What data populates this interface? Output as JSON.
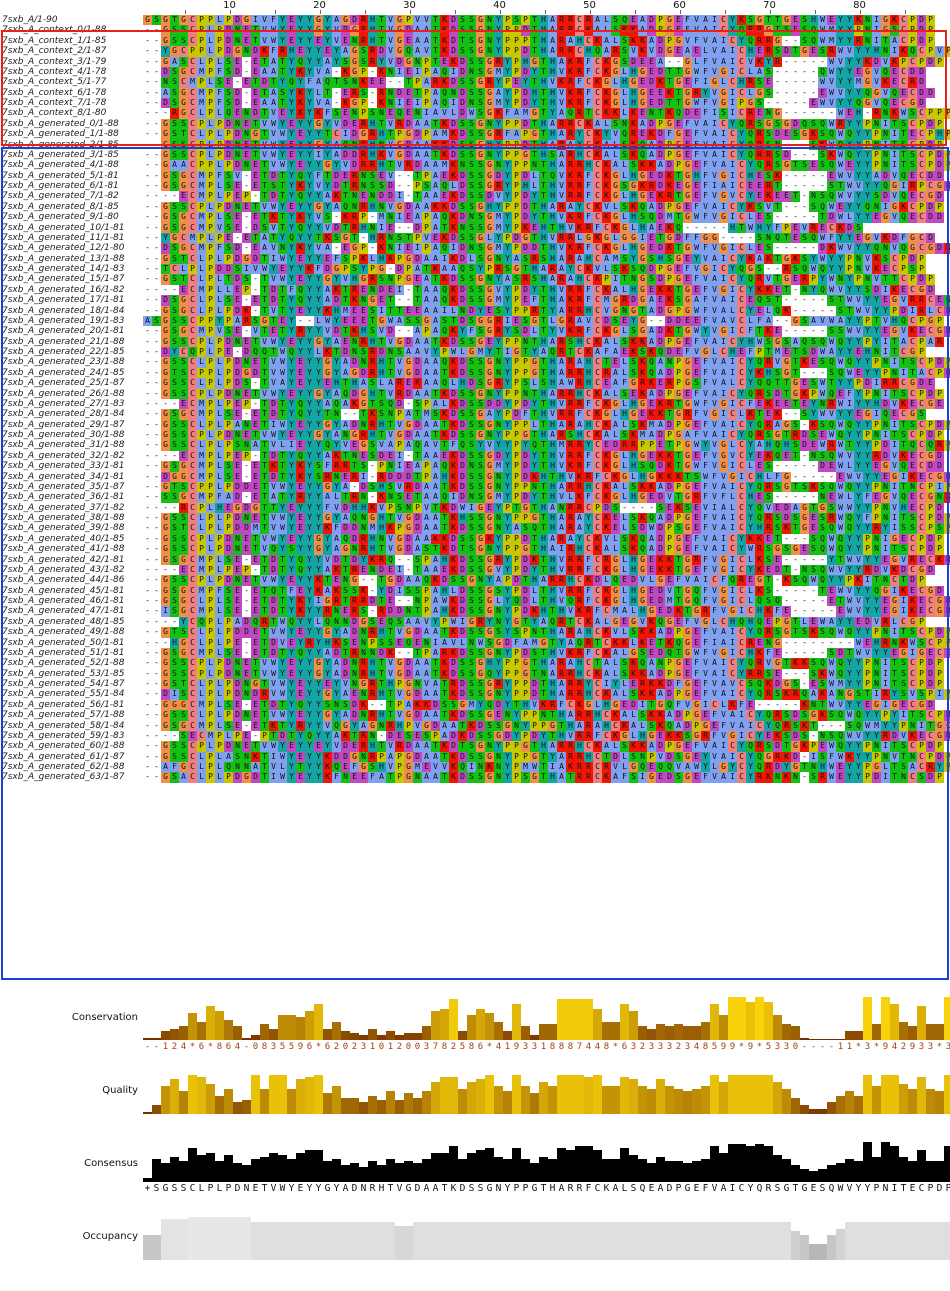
{
  "ruler": {
    "ticks": [
      "10",
      "20",
      "30",
      "40",
      "50",
      "60",
      "70",
      "80"
    ]
  },
  "sequences": [
    {
      "name": "7sxb_A/1-90",
      "seq": "GSGTGCPPLPDGIVFYEYYGYAGDRHTVGPVVTKDSSGNYPSPTHARRCRALSQEADPGEFVAICYKSGTTGESHWEYYKNIGKCPDP"
    },
    {
      "name": "7sxb_A_context_0/1-88",
      "seq": "--GSSCPLPDNETVWYEYYGYVDGRHTVGDAATKDSSGNYPPDTHARRCKALSKKADPGEFVAICYQRRGTSESQWMYYPNIGSCPDP"
    },
    {
      "name": "7sxb_A_context_1/1-85",
      "seq": "--GSSCPLPDNETVWYEYYEYVENRHTVGEAATKDTSGNYPPPTHARAHCKALSKKADPGVFVAICYQRRG--SQWMYYRNITACPDP"
    },
    {
      "name": "7sxb_A_context_2/1-87",
      "seq": "--YGCPPLPDGNDKFRHEYYEYAGSRDVGQAVTKDSSGNYPPDTHARRCHQARSVKVDGEAELVAICHERSDTGESRWVYYHNIKQCPVP"
    },
    {
      "name": "7sxb_A_context_3/1-79",
      "seq": "--GASCLPLSE-ETATYQYYAYSGSRYVDGNPTEKDSSGRYPHGTHAKRFCKGSDEEA--GLFVAICVKYR-----WVYYKDVKPCPDP"
    },
    {
      "name": "7sxb_A_context_4/1-78",
      "seq": "--DSGCMPFSD-EAATYKYVA-KGP-KNIEIPAQIDNSGMYPDYTHVKRFCKGLHGEDTTGWFVGICLAS-----QWYYEGVQECDD"
    },
    {
      "name": "7sxb_A_context_5/1-77",
      "seq": "--NSCMPLSE-ETDTYQYFAQTSNKEE--TPARKDSSGRYPEYTHVKRFCKGLHGEDKTGEFIGLCHRSE-----WVYYMGVKECRD"
    },
    {
      "name": "7sxb_A_context_6/1-78",
      "seq": "--ASGCMPFSD-ETASYKYLT-ERS-RNDETPAQNDSSGAYPDHTHVKRFCKGLHGEEKTGRYVGICLGS-----EWVYYQGVQECDD"
    },
    {
      "name": "7sxb_A_context_7/1-78",
      "seq": "--DSGCMPFSD-EAATYKYVA-KGP-KNIEIPAQIDNSGMYPDYTHVKRFCKGLHGEDTTGWFVGIPGS-----EWVYYQGVQECGD"
    },
    {
      "name": "7sxb_A_context_8/1-80",
      "seq": "---RGCLPLQENDTVEYKYKFSENPSNEQENIAVLDWSGKFAMGTYAQRTCKKLKENTKQDEFISICRENG------WEH-RNKWSCPPP"
    },
    {
      "name": "7sxb_A_generated_0/1-88",
      "seq": "--GSSCPLPDNETVWYEYYGYVDERHTVRDAATKDSSGNYPPDTHARRCKALSNKADPGEFVAICYQRSGSGDQSQWRYYPNITSCPDP"
    },
    {
      "name": "7sxb_A_generated_1/1-88",
      "seq": "--GSTCLPLPDNGTVWYEYYTCIDGRHTPGDPAMKDSSGRFAPGTHARYCKYVQREKDFGEFVAICYQRSDESGKSQWQYYPNITECPHP"
    },
    {
      "name": "7sxb_A_generated_2/1-85",
      "seq": "--GSSCPLPDNETVWYEYYGYAQNRHNVGDAAKKDSSGHYPPDTHARAYCKALSKQADPGEFVAICYQRSN---SKWQYYPNITSCPDP"
    },
    {
      "name": "7sxb_A_generated_3/1-85",
      "seq": "--GSSCPLPDNETVWYEYYIYADDRHKVGDAATKDSSGNYPPGTHSARHCKALSKQADPGEFVAICYQRRSD---SKWQYYPNITSCPDP"
    },
    {
      "name": "7sxb_A_generated_4/1-88",
      "seq": "--GAACPPLPDNETVWYEYYGYVDRRHTVRDAAMKNSSGNYPPNTHARRHCKALSKKADPGEFVAICYQRSGTSESQWEYYPNITSCPDP"
    },
    {
      "name": "7sxb_A_generated_5/1-81",
      "seq": "--GSGCMPFSV-ETDTYQYFTDERNSEV--TPAEKDSSGDYPDLTQVKRFCKGLHGEDKTGHFVGICHESK-----EWVYYADVQECDD"
    },
    {
      "name": "7sxb_A_generated_6/1-81",
      "seq": "--GSGCMPLSE-ETSTYKYVYDTRNSSD--PSAQLDSSGRYPHLTHVRRFCKGSGKRDKEGEFIAICEERT-----STWVYYQGIRPCGDS"
    },
    {
      "name": "7sxb_A_generated_7/1-82",
      "seq": "----ECMPLPEP-TDTYQYYAKTNENDDI-TAAEKDSSDVYPDYTHVRRFCKGLHGEKRTGEFVGVCYEKEET-NSQWVYYSDVQECGD"
    },
    {
      "name": "7sxb_A_generated_8/1-85",
      "seq": "--GSSCPLPDNETVWYEYYGYAQNRHNVGDAAKKDSSGHYPPDTHARAYCKVLSKQADPGEFVAICYKSVT---SQWEYYQNIGKCPDP"
    },
    {
      "name": "7sxb_A_generated_9/1-80",
      "seq": "--GSGCMPLSE-ETKTYKYVS-KRP-MNIEAPAQKDNSGMYPDYTHVKRFCKGLHSQDMTGWFVGICLES-----TDWLYYEGVQECDD"
    },
    {
      "name": "7sxb_A_generated_10/1-81",
      "seq": "--GSGCMPVSE-DSVTYQYYVDTRHNIE--DPATKNSSGMYPKEHTHVKRFCKGLHAEKQ-----HTWHYFPEVRECKDS"
    },
    {
      "name": "7sxb_A_generated_11/1-81",
      "seq": "--YGCMPLPE-ETATYQYYTKSGT-HRNSTPVEKDSSGLYPDGTHVRRLGKGLGGIETGDFFGG----SNQTESQWFYYEGVKDFGCD"
    },
    {
      "name": "7sxb_A_generated_12/1-80",
      "seq": "--DSGCMPFSD-EAVNYKYVA-EGP-KNIEIPAQIDNSGMYPDDTHVKRFCKGLHGEDKTGWFVGICLES-----DKWVYYQNVQGCGDK"
    },
    {
      "name": "7sxb_A_generated_13/1-88",
      "seq": "--GSTCLPLPDGDTIWYEYYEFSPKLHKPGDAAIKDLSGNYASRSHARAHCAMSYGSHSGEYVAICYKAKTGKSYWYYPNVKSCPDP"
    },
    {
      "name": "7sxb_A_generated_14/1-83",
      "seq": "--TCLPLPDDSIVWYEYYKFDGPSYPG-DPATKAAQSYPRSGTHARAYCKVLSKSQDPGEFVGICYQGS--RSQWQYYPNVKECPSP"
    },
    {
      "name": "7sxb_A_generated_15/1-87",
      "seq": "--GSTCLPLTDS-TVWYEYYGYVHGRSNPGEATKDSSGNYASRSHARAHCKPITNGSDPGEFVAICYQRVTGERPYWNYPNVTTCPDP"
    },
    {
      "name": "7sxb_A_generated_16/1-82",
      "seq": "----ECMPLLEP-TDTFQYYAKTRENDEI-TAAQKDSSGVYPDYTHVRRFCKALHGEKKTGEFVGICYKKET-NYQWVYYSDIKECGD"
    },
    {
      "name": "7sxb_A_generated_17/1-81",
      "seq": "--DSGCLPLSE-ETDTYQYYADTKNGET--TAAQKDSSGMYPEFTHAKRFCMGRDGAEKSGAFVAICEQST-----STWVYYEGVRRCEN"
    },
    {
      "name": "7sxb_A_generated_18/1-84",
      "seq": "--GSGCLPLPDK-TVTYEYYKHMEESITTEEAAILNDYESYPPRTYARRHCVGNGTADGPGWFVALCYELQK-----STWVYYPDIRLCDDE"
    },
    {
      "name": "7sxb_A_generated_19/1-83",
      "seq": "ASGSSCPPYPARSGTEY--LWYEEETGWASSGASTDSGGRIESGTLGRAVCDSEYG--DDEEFVAVCLFA--GSAVWAYYPTVHQCPGP"
    },
    {
      "name": "7sxb_A_generated_20/1-81",
      "seq": "--GSGCMPVSE-VTETYRYYVDTKHSVD--APAQKYFSGRYSDLTYVKRFCKGLSGADKTGWYVGICFTKE-----SSWVYYEGVKECGDE"
    },
    {
      "name": "7sxb_A_generated_21/1-88",
      "seq": "--GSSCPLPDNETVWYEYYGYAENRHTVGDAATKDSSGEYPPNTHARSHCKALSKKADPGEFVAICYHWSGSAQSQWQYYPYITACPAR"
    },
    {
      "name": "7sxb_A_generated_22/1-85",
      "seq": "--DYCQPLPE-DQQTWQYYLKTDNSRDNSAAVYPWLGMYTIGTYAQRTCKAFAEKSKQDEFVGLCHEFPTMETSDWAYYEHNITCGP"
    },
    {
      "name": "7sxb_A_generated_23/1-88",
      "seq": "--GSSCLPLPDNETVWYEYYGYADNRHTVGDAAQKDSSGNYPPGTHARAHCTELSKQANPGEFVAICYQRVGTKESQWQYYPNITSCPDP"
    },
    {
      "name": "7sxb_A_generated_24/1-85",
      "seq": "--GTSCPPLPDGDTVWYEYYGYAGDRHTVGDAATKDSSGNYPPGTHARRHCRALSKQADPGEFVAICYKHSGT---SQWEYYPNITACPDP"
    },
    {
      "name": "7sxb_A_generated_25/1-87",
      "seq": "--GSSCLPLPDS-TVAYEYYEHTHASLAREKAAQLHDSGRYPSLSHAWRHCEAFGRKERPGSFVALCYQQTTGESWTYYPDIRRCGDE"
    },
    {
      "name": "7sxb_A_generated_26/1-88",
      "seq": "--GSSCPLPDNETVWYEYYGYAQDGHTVRDAATKDSSGNYPPNTHARRHCKALSEKADPGEFVAICYQRSDTGKPWQEFYPNITSCPDP"
    },
    {
      "name": "7sxb_A_generated_27/1-83",
      "seq": "----ECMPLPEP-TDTYQYYAQAKGTSQD-SPALKDSSDDYPDYTHVRRFCKGLHGEKRTGWFVGICFEKEETEYNRWIYYHDVKECGE"
    },
    {
      "name": "7sxb_A_generated_28/1-84",
      "seq": "--GSGCMPLSE-ETDTYQYYTN--TKSNPATMSKDSSGAYPDFTHVRRFCKGLHGEKKTGRFVGICLKTEK--SYWVYYEGIQECGS"
    },
    {
      "name": "7sxb_A_generated_29/1-87",
      "seq": "--GSSCLPLPANETIWYEYYGYADNRHTVGDAATKDSSGNYPPLTHARAHCKALSKMADPGEFVAICYQRAGS-KSQWQYYPNITSCPDP"
    },
    {
      "name": "7sxb_A_generated_30/1-88",
      "seq": "--GSSCPLPDNETVWYEYYGYANGRHTVGDAATKDSSGNYPPGTHARSHCKALSKMADPGAFVAICYQRSGTRDSEWQYYPNITSCPDP"
    },
    {
      "name": "7sxb_A_generated_31/1-88",
      "seq": "--GSSCLPLPSNATVLIEYYQYVEGSVAPAQAVTFQSYVYYPYQTHMRRYCEDRRPPETPGWYVGLCYAHQHSDEWRWTYYPDITQCQRP"
    },
    {
      "name": "7sxb_A_generated_32/1-82",
      "seq": "----ECMPLPEP-TDTYQYYAKTNESDEI-TAAEKDSSGDYPDYTHVRRFCKGLHGEKKTGEFVGVCYEKQET-NSQWVYYRDVKECGD"
    },
    {
      "name": "7sxb_A_generated_33/1-81",
      "seq": "--GSGCMPLSE-ETKTYKYSFRRTS-PNIEAPAQKDNSGMYPDYTHVKRFCKGLHSQDKTGWFVGICLES-----DEWLYYEGVQECDD"
    },
    {
      "name": "7sxb_A_generated_34/1-81",
      "seq": "--DGGCMPLSE-ETDTYKYSRNERI-RDDDTPAHKDSSGNYPDKHTHVKRFCKGLHGKKKTSWFVGICHLFG-----EWVYYEGIKECGDM"
    },
    {
      "name": "7sxb_A_generated_35/1-87",
      "seq": "--GTSCPPLPDDETVWYEYYGYA-DSHSVRDAATKDSSGNYPPNTHARRHCKALSKKADPGEFVAICYQRSGTSKSQWQYYPNITNCPIP"
    },
    {
      "name": "7sxb_A_generated_36/1-81",
      "seq": "--SSGCMPFAD-ETATYRYYALTRN-KNSETAAQIDNSGMYPDYTHVLKFCKGLHGEDVTGRFVFLCHES-----NEWLYFEGVQECGNK"
    },
    {
      "name": "7sxb_A_generated_37/1-82",
      "seq": "----RCPLHEGDGTTYEYYYFVDHHKVPSNPVTKDWIGEYPTGTHANRRCPDS----SEKSEVIALCYQVEDAGTGSWWYYPNVHECPD"
    },
    {
      "name": "7sxb_A_generated_38/1-88",
      "seq": "--GSSCLPLPDNETVWYEYYGYAQNGHTVGDAATKHSSGNYPPGTHARAYCKELSKQADPGEFVAICYQRSDSGESRWQYFPNITSCPDP"
    },
    {
      "name": "7sxb_A_generated_39/1-88",
      "seq": "--GSTCLPLPDDMTVWYEYYKFDDNMHKPGDAATKDSSGNYASQTHARAYCKELSDWDPSGEFVAICYHRSKTGESQWQYYRYISSCPSP"
    },
    {
      "name": "7sxb_A_generated_40/1-85",
      "seq": "--GSSCPLPDNETVWYEYYGYAQDRHNVGDAAKKDSSGKYPPDTHARAYCKVLSKQADPGEFVAICYKKET---SQWQYYPNIGECPDP"
    },
    {
      "name": "7sxb_A_generated_41/1-88",
      "seq": "--GSSCPLPDNETVQYSYYGYAGNRHTVGDASTKDTSGNYPPGTHAIRHCKALSKQADPGEFVAICYWRSGSGESQWQYYPNITSCPDP"
    },
    {
      "name": "7sxb_A_generated_42/1-81",
      "seq": "--GSGCMPLSE-ETDTYQYYVDTDYKRQ--SPAHKDSSGRYPDKTHVRRFCRGLHGEKKTGRFVGICLKSE-----YTWVYYEGVRECKD"
    },
    {
      "name": "7sxb_A_generated_43/1-82",
      "seq": "----ECMPLPEP-TDTYQYYAKTRENDEI-TAAEKDSSGVYPDYTHVRRFCKGLHGEKKTGEFVGICYKEDT-NSQWVYYRDVKDCGD"
    },
    {
      "name": "7sxb_A_generated_44/1-86",
      "seq": "--GSSCPLPDNETVWYEYYKTENG--TGDAAQKDSSGNYAPDTHARRHCKDLQEDVLGEFVAICFQREGT-KSQWQYYPKITNCTDP"
    },
    {
      "name": "7sxb_A_generated_45/1-81",
      "seq": "--GSGCMPFSE-ETQTFEYKAKSSK-YDISSPAHLDSSGSYPDLTHVRRFCKGLHGEDVTGQFVGICLKS-----TEWVYYQGIKECGD"
    },
    {
      "name": "7sxb_A_generated_46/1-81",
      "seq": "--GSGCLPLSE-ETDTYKYIGRTRRDTE--NPAWKDSSGLYQDLTHVQRFCKGLHGEDMTGQFVGICLQSQ-----ETWVYYEGIKECGDS"
    },
    {
      "name": "7sxb_A_generated_47/1-81",
      "seq": "--ISGCMPLSE-ETDTYKYYRNERS-RDDNTPAHKDSSGNYPDKHTHVKRFCMALHGEDKTGRFVGICHKFE-----EWVYYEGIKECGDS"
    },
    {
      "name": "7sxb_A_generated_48/1-85",
      "seq": "----YCQPLPADQRTWQYYLQNNDGSEQSAAVYPWIGRYNYGTYAQRTCKALGEGVKQGEFVGLCHQHQEPGTLEWAYYEDVRLCGP"
    },
    {
      "name": "7sxb_A_generated_49/1-88",
      "seq": "--GTSCLPLPDDETVWYEYYGYADNRHTVGDAATKDSSGSYSPNTHARAHCKVLSKKADPGEFVAICYQRSGTSKSQWQYYPNITSCPDP"
    },
    {
      "name": "7sxb_A_generated_50/1-81",
      "seq": "---HGCLPLPE-ETDVEYRYHKSENPSSEQENIAVLNWSGDFAMGTYAQRTCKKLKETKQGEFIAICRENG--------WEHRNKWSCPPP"
    },
    {
      "name": "7sxb_A_generated_51/1-81",
      "seq": "--GSGCMPLSE-ETDTYQYYADTRNNDK--TPARKDSSGNYPDSTHVKRFCKALGSEDQTGWFVGICHKFE-----SDTWVYYEGIGECEV"
    },
    {
      "name": "7sxb_A_generated_52/1-88",
      "seq": "--GSSCPLPDNETVWYEYYGYADNRHTVGDAATKDSSGHYPPGTHARAHCTALSKQANPGEFVAICYQRVGTKKSQWQYYPNITSCPDP"
    },
    {
      "name": "7sxb_A_generated_53/1-85",
      "seq": "--GSSCPLPDNETVWYEYYGYADNRHTVGDAATKDSSGQYPPGTNARRHCKALSKKADPGEFVAICYRRSE---SKWQYYPNITSCPDP"
    },
    {
      "name": "7sxb_A_generated_54/1-87",
      "seq": "--GSTCLPLPDNGTVWYEYYEYVNGRTHPGNVATRDSSGRYPPDTHARRYCIYLERKKDFGEFVAVCSQKDGS-ESWMYYPNITSCPDP"
    },
    {
      "name": "7sxb_A_generated_55/1-84",
      "seq": "--DISCLPLPDNDRVWYEYYGYAENRHTVGDAATKDSSGNYPPDTHARRHCKALSKKADPGEFVAICYQRSKRQAKANGSTIRYSVSPIP"
    },
    {
      "name": "7sxb_A_generated_56/1-81",
      "seq": "--GGGCMPLSE-ETDTYQYYSNSDK--TPAKKDSSGMYQDYTHVKRFCKGLHGEDITGQFVGICLKFE-----KNTWVYYEGIGECGD"
    },
    {
      "name": "7sxb_A_generated_57/1-88",
      "seq": "--GSSCLPLPDNETVWYEYYGYADNRHTVGDAATKDSSGENYPPNTHARRHCKALSKKADPGEFVAICYQRSDSGKSQWQYYPYITSCPDP"
    },
    {
      "name": "7sxb_A_generated_58/1-84",
      "seq": "--GSGCMPLSE-ETKTYRYYVQGYAGNRHPVGDAATKDSSGNYPPGTHARAHCKALSKQADPGEFVAICYQRSKT---SQWMYYPNITGCPDP"
    },
    {
      "name": "7sxb_A_generated_59/1-83",
      "seq": "----SECMPLPE-PTDTYQYYAKTRN-DESESPADKDSSGDYPDYTHVRRFCKGLHGEKKSGRFVGICYEKSDS-NSQWVYYRDVKECGD"
    },
    {
      "name": "7sxb_A_generated_60/1-88",
      "seq": "--GSSCPLPDNETVWYEYYEYVDERHTVRDAATKDTSGNYPPGTHARRHCKALSKKADPGEFVAICYQRSDTGKPEWQYYPNITSCPDP"
    },
    {
      "name": "7sxb_A_generated_61/1-87",
      "seq": "--GSSCLPLASNKTIWYEYYKDDGNRPAPGDAATKDSSGNYPPGTYARRHCTDLSNPVDSGEYVAICYQGRKD-ISFWKYYPNVTNCPDP"
    },
    {
      "name": "7sxb_A_generated_62/1-88",
      "seq": "--AFGCLPLQNNATVLYTYYKQEFGSHVPGMEVVKQINKNYPMWTIAKRRCRVLGQEQQVAWYLGYCYQRDYGTNHWEYYPGLTSACRYP"
    },
    {
      "name": "7sxb_A_generated_63/1-87",
      "seq": "--GSACLPLPDGDTIWYEYYKFNEEFATPGNAATKDSSGNYPSGTHATRRCKAFSIGEDSGEFVAICYRKNKN-SRWEYYPDITNCSDP"
    }
  ],
  "tracks": {
    "conservation_label": "Conservation",
    "quality_label": "Quality",
    "consensus_label": "Consensus",
    "occupancy_label": "Occupancy",
    "conservation_scores": "--124*6*864-0835596*620231012003782586*4193318887448*6323332348599*9*5330----11*3*942933*320",
    "consensus_seq": "+SGSSCLPLPDNETVWYEYYGYADNRHTVGDAATKDSSGNYPPGTHARRFCKALSQEADPGEFVAICYQRSGTGESQWVYYPNITECPDP",
    "conservation_values": [
      0.05,
      0.05,
      0.2,
      0.25,
      0.3,
      0.6,
      0.4,
      0.75,
      0.65,
      0.45,
      0.3,
      0.05,
      0.1,
      0.35,
      0.25,
      0.55,
      0.55,
      0.5,
      0.65,
      0.8,
      0.25,
      0.4,
      0.2,
      0.15,
      0.1,
      0.25,
      0.1,
      0.2,
      0.1,
      0.15,
      0.15,
      0.3,
      0.65,
      0.7,
      0.9,
      0.2,
      0.55,
      0.7,
      0.6,
      0.4,
      0.2,
      0.8,
      0.3,
      0.1,
      0.35,
      0.35,
      0.9,
      0.9,
      0.9,
      0.9,
      0.7,
      0.4,
      0.4,
      0.8,
      0.65,
      0.3,
      0.25,
      0.35,
      0.3,
      0.35,
      0.3,
      0.3,
      0.4,
      0.8,
      0.55,
      0.95,
      0.95,
      0.85,
      0.95,
      0.85,
      0.55,
      0.35,
      0.3,
      0.05,
      0.02,
      0.02,
      0.02,
      0.02,
      0.2,
      0.2,
      0.95,
      0.35,
      0.95,
      0.8,
      0.4,
      0.3,
      0.75,
      0.35,
      0.35,
      0.95,
      0.35,
      0.25,
      0.05
    ],
    "quality_values": [
      0.05,
      0.2,
      0.6,
      0.75,
      0.5,
      0.85,
      0.8,
      0.65,
      0.4,
      0.55,
      0.25,
      0.3,
      0.85,
      0.55,
      0.85,
      0.85,
      0.55,
      0.75,
      0.8,
      0.85,
      0.45,
      0.6,
      0.35,
      0.35,
      0.25,
      0.4,
      0.3,
      0.5,
      0.3,
      0.45,
      0.35,
      0.5,
      0.7,
      0.8,
      0.8,
      0.55,
      0.7,
      0.75,
      0.85,
      0.6,
      0.5,
      0.85,
      0.6,
      0.45,
      0.7,
      0.6,
      0.85,
      0.85,
      0.85,
      0.8,
      0.85,
      0.6,
      0.6,
      0.8,
      0.75,
      0.6,
      0.55,
      0.75,
      0.6,
      0.55,
      0.5,
      0.55,
      0.6,
      0.85,
      0.7,
      0.85,
      0.85,
      0.85,
      0.85,
      0.85,
      0.7,
      0.55,
      0.35,
      0.2,
      0.1,
      0.1,
      0.25,
      0.4,
      0.5,
      0.4,
      0.85,
      0.6,
      0.85,
      0.85,
      0.65,
      0.55,
      0.8,
      0.55,
      0.5,
      0.85,
      0.5,
      0.45,
      0.3
    ],
    "consensus_values": [
      0.1,
      0.55,
      0.45,
      0.6,
      0.5,
      0.8,
      0.65,
      0.7,
      0.5,
      0.65,
      0.45,
      0.4,
      0.55,
      0.6,
      0.7,
      0.65,
      0.55,
      0.7,
      0.75,
      0.75,
      0.5,
      0.55,
      0.4,
      0.45,
      0.35,
      0.5,
      0.4,
      0.55,
      0.45,
      0.5,
      0.45,
      0.55,
      0.7,
      0.7,
      0.85,
      0.55,
      0.7,
      0.75,
      0.8,
      0.6,
      0.55,
      0.8,
      0.55,
      0.45,
      0.6,
      0.55,
      0.8,
      0.75,
      0.85,
      0.85,
      0.75,
      0.55,
      0.55,
      0.8,
      0.65,
      0.55,
      0.45,
      0.6,
      0.5,
      0.5,
      0.45,
      0.5,
      0.55,
      0.85,
      0.7,
      0.9,
      0.9,
      0.85,
      0.9,
      0.85,
      0.65,
      0.55,
      0.4,
      0.3,
      0.25,
      0.3,
      0.4,
      0.45,
      0.55,
      0.5,
      0.95,
      0.6,
      0.95,
      0.85,
      0.6,
      0.5,
      0.75,
      0.5,
      0.5,
      0.85,
      0.5,
      0.5,
      0.35
    ],
    "occupancy_values": [
      0.55,
      0.55,
      0.9,
      0.9,
      0.9,
      0.95,
      0.95,
      0.95,
      0.95,
      0.95,
      0.95,
      0.95,
      0.85,
      0.85,
      0.85,
      0.85,
      0.85,
      0.85,
      0.85,
      0.85,
      0.85,
      0.85,
      0.85,
      0.85,
      0.85,
      0.85,
      0.85,
      0.85,
      0.75,
      0.75,
      0.85,
      0.85,
      0.85,
      0.85,
      0.85,
      0.85,
      0.85,
      0.85,
      0.85,
      0.85,
      0.85,
      0.85,
      0.85,
      0.85,
      0.85,
      0.85,
      0.85,
      0.85,
      0.85,
      0.85,
      0.85,
      0.85,
      0.85,
      0.85,
      0.85,
      0.85,
      0.85,
      0.85,
      0.85,
      0.85,
      0.85,
      0.85,
      0.85,
      0.85,
      0.85,
      0.85,
      0.85,
      0.85,
      0.85,
      0.85,
      0.85,
      0.85,
      0.65,
      0.55,
      0.35,
      0.35,
      0.55,
      0.7,
      0.85,
      0.85,
      0.85,
      0.85,
      0.85,
      0.85,
      0.85,
      0.85,
      0.85,
      0.85,
      0.85,
      0.85,
      0.85,
      0.85,
      0.85
    ]
  },
  "colors": {
    "red_box": "#e8221b",
    "blue_box": "#1f3dd4",
    "hydrophobic": "#80a0f0",
    "cys": "#f08080",
    "polar": "#15c015",
    "gly": "#f09048",
    "pro": "#c8c800",
    "arom": "#15a4a4",
    "pos": "#f01505",
    "neg": "#c048c0"
  }
}
